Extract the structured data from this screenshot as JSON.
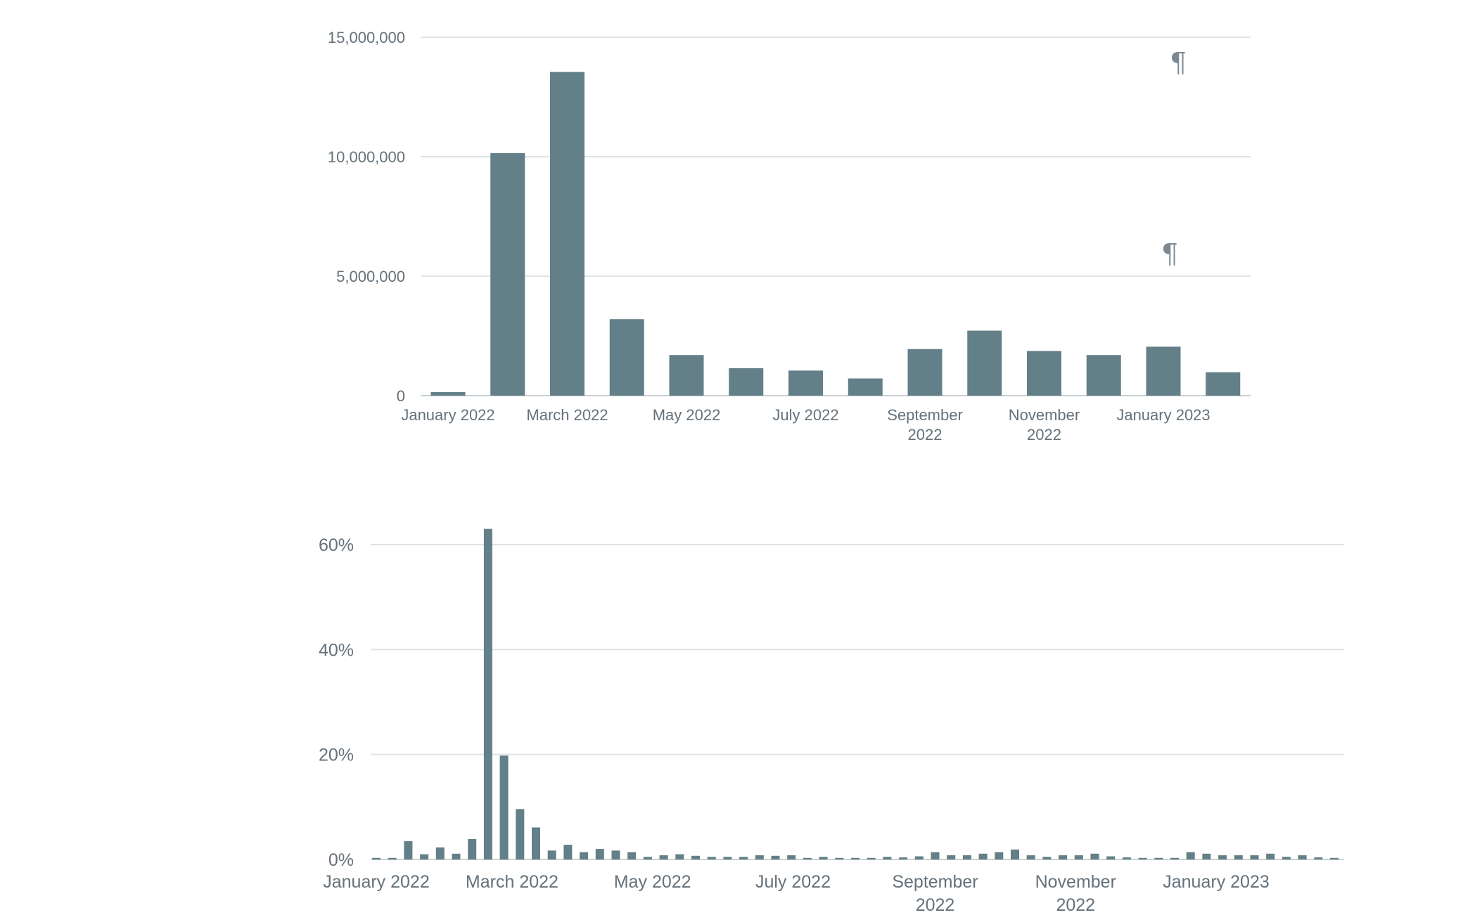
{
  "pilcrow_glyph": "¶",
  "colors": {
    "bar": "#637f87",
    "grid": "#dde3e6",
    "text": "#65717a",
    "background": "#ffffff"
  },
  "chart_data": [
    {
      "type": "bar",
      "title": "",
      "xlabel": "",
      "ylabel": "",
      "ylim": [
        0,
        15000000
      ],
      "y_ticks": [
        {
          "value": 0,
          "label": "0"
        },
        {
          "value": 5000000,
          "label": "5,000,000"
        },
        {
          "value": 10000000,
          "label": "10,000,000"
        },
        {
          "value": 15000000,
          "label": "15,000,000"
        }
      ],
      "categories": [
        "January 2022",
        "February 2022",
        "March 2022",
        "April 2022",
        "May 2022",
        "June 2022",
        "July 2022",
        "August 2022",
        "September 2022",
        "October 2022",
        "November 2022",
        "December 2022",
        "January 2023",
        "February 2023"
      ],
      "x_tick_labels": [
        {
          "index": 0,
          "lines": [
            "January 2022"
          ]
        },
        {
          "index": 2,
          "lines": [
            "March 2022"
          ]
        },
        {
          "index": 4,
          "lines": [
            "May 2022"
          ]
        },
        {
          "index": 6,
          "lines": [
            "July 2022"
          ]
        },
        {
          "index": 8,
          "lines": [
            "September",
            "2022"
          ]
        },
        {
          "index": 10,
          "lines": [
            "November",
            "2022"
          ]
        },
        {
          "index": 12,
          "lines": [
            "January 2023"
          ]
        }
      ],
      "values": [
        150000,
        10150000,
        13550000,
        3200000,
        1700000,
        1150000,
        1050000,
        720000,
        1950000,
        2720000,
        1870000,
        1700000,
        2050000,
        980000
      ],
      "grid": true,
      "legend": "none"
    },
    {
      "type": "bar",
      "title": "",
      "xlabel": "",
      "ylabel": "",
      "ylim": [
        0,
        60
      ],
      "y_ticks": [
        {
          "value": 0,
          "label": "0%"
        },
        {
          "value": 20,
          "label": "20%"
        },
        {
          "value": 40,
          "label": "40%"
        },
        {
          "value": 60,
          "label": "60%"
        }
      ],
      "x_range": [
        0,
        60
      ],
      "x_tick_labels": [
        {
          "index": 0,
          "lines": [
            "January 2022"
          ]
        },
        {
          "index": 8.5,
          "lines": [
            "March 2022"
          ]
        },
        {
          "index": 17.3,
          "lines": [
            "May 2022"
          ]
        },
        {
          "index": 26.1,
          "lines": [
            "July 2022"
          ]
        },
        {
          "index": 35,
          "lines": [
            "September",
            "2022"
          ]
        },
        {
          "index": 43.8,
          "lines": [
            "November",
            "2022"
          ]
        },
        {
          "index": 52.6,
          "lines": [
            "January 2023"
          ]
        }
      ],
      "values": [
        0.3,
        0.3,
        3.5,
        1,
        2.3,
        1.1,
        3.9,
        63,
        19.8,
        9.6,
        6.1,
        1.7,
        2.8,
        1.4,
        2,
        1.7,
        1.4,
        0.5,
        0.8,
        1,
        0.7,
        0.5,
        0.5,
        0.5,
        0.8,
        0.7,
        0.8,
        0.3,
        0.5,
        0.3,
        0.3,
        0.3,
        0.5,
        0.4,
        0.6,
        1.4,
        0.8,
        0.8,
        1.1,
        1.4,
        1.9,
        0.8,
        0.5,
        0.8,
        0.8,
        1.1,
        0.6,
        0.4,
        0.3,
        0.3,
        0.3,
        1.4,
        1.1,
        0.8,
        0.8,
        0.8,
        1.1,
        0.5,
        0.8,
        0.4,
        0.3
      ],
      "grid": true,
      "legend": "none"
    }
  ]
}
